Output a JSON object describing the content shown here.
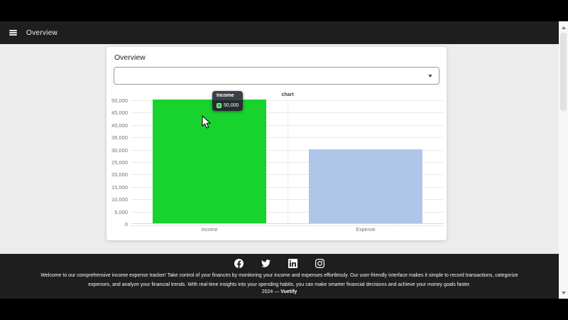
{
  "appbar": {
    "title": "Overview",
    "bg": "#1e1e1e",
    "menu_icon": "hamburger-menu-icon"
  },
  "page": {
    "bg": "#ececec",
    "letterbox_color": "#000000"
  },
  "card": {
    "title": "Overview",
    "select": {
      "value": "",
      "placeholder": "",
      "icon": "chevron-down-icon"
    }
  },
  "chart_data": {
    "type": "bar",
    "title": "chart",
    "categories": [
      "Income",
      "Expense"
    ],
    "values": [
      50000,
      30000
    ],
    "value_labels": [
      "50,000",
      "30,000"
    ],
    "bar_colors": [
      "#18d32e",
      "#aec6e8"
    ],
    "ylim": [
      0,
      50000
    ],
    "ytick_values": [
      50000,
      45000,
      40000,
      35000,
      30000,
      25000,
      20000,
      15000,
      10000,
      5000,
      0
    ],
    "ytick_labels": [
      "50,000",
      "45,000",
      "40,000",
      "35,000",
      "30,000",
      "25,000",
      "20,000",
      "15,000",
      "10,000",
      "5,000",
      "0"
    ],
    "grid": true,
    "legend_position": "none",
    "xlabel": "",
    "ylabel": ""
  },
  "tooltip": {
    "title": "Income",
    "value": "50,000",
    "swatch_color": "#18d32e"
  },
  "footer": {
    "bg": "#1e1e1e",
    "icons": [
      "facebook-icon",
      "twitter-icon",
      "linkedin-icon",
      "instagram-icon"
    ],
    "description_line1": "Welcome to our comprehensive income expense tracker! Take control of your finances by monitoring your income and expenses effortlessly. Our user-friendly interface makes it simple to record transactions, categorize",
    "description_line2": "expenses, and analyze your financial trends. With real-time insights into your spending habits, you can make smarter financial decisions and achieve your money goals faster.",
    "copyright_prefix": "2024 —",
    "copyright_brand": "Vuetify"
  }
}
